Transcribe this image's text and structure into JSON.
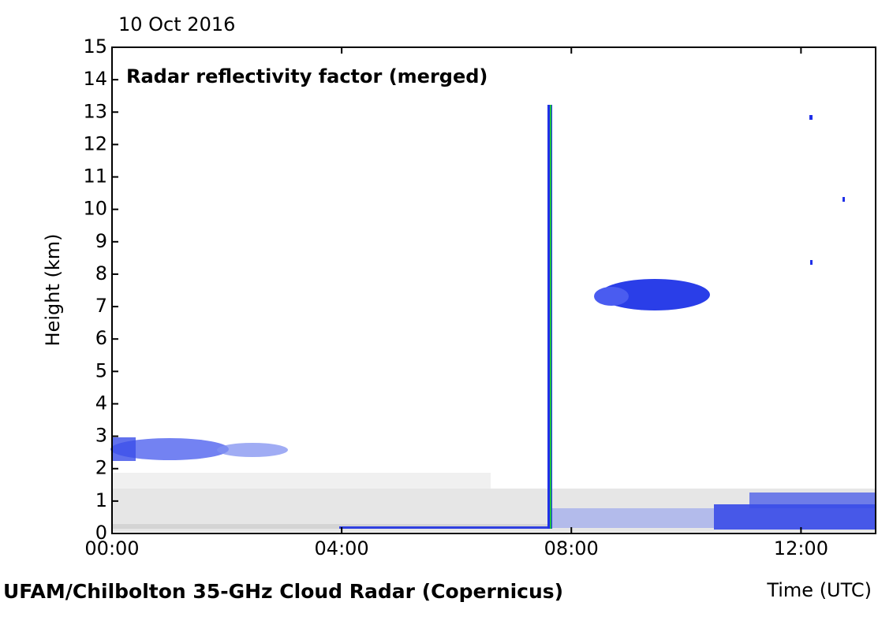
{
  "chart_data": {
    "type": "radar-image",
    "date": "10 Oct 2016",
    "title": "Radar reflectivity factor (merged)",
    "ylabel": "Height (km)",
    "xlabel": "Time (UTC)",
    "caption": "UFAM/Chilbolton 35-GHz Cloud Radar (Copernicus)",
    "xlim": [
      0,
      13.3
    ],
    "xticks": [
      {
        "value": 0,
        "label": "00:00"
      },
      {
        "value": 4,
        "label": "04:00"
      },
      {
        "value": 8,
        "label": "08:00"
      },
      {
        "value": 12,
        "label": "12:00"
      }
    ],
    "ylim": [
      0,
      15
    ],
    "yticks": [
      0,
      1,
      2,
      3,
      4,
      5,
      6,
      7,
      8,
      9,
      10,
      11,
      12,
      13,
      14,
      15
    ]
  }
}
